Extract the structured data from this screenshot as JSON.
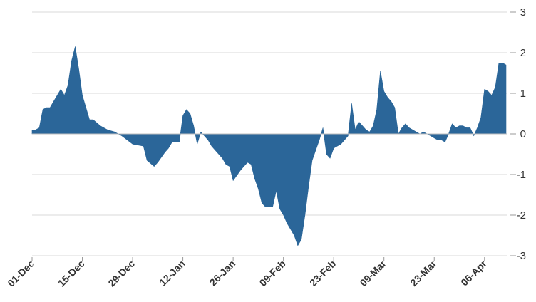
{
  "chart_data": {
    "type": "area",
    "title": "",
    "xlabel": "",
    "ylabel": "",
    "ylim": [
      -3,
      3
    ],
    "y_ticks": [
      3,
      2,
      1,
      0,
      -1,
      -2,
      -3
    ],
    "y_axis_side": "right",
    "grid": true,
    "legend": "none",
    "x_tick_labels": [
      "01-Dec",
      "15-Dec",
      "29-Dec",
      "12-Jan",
      "26-Jan",
      "09-Feb",
      "23-Feb",
      "09-Mar",
      "23-Mar",
      "06-Apr"
    ],
    "x_range": [
      "2024-12-01",
      "2025-04-12"
    ],
    "area_color": "#2b6699",
    "series": [
      {
        "x": [
          "2024-12-01",
          "2024-12-02",
          "2024-12-03",
          "2024-12-04",
          "2024-12-05",
          "2024-12-06",
          "2024-12-07",
          "2024-12-08",
          "2024-12-09",
          "2024-12-10",
          "2024-12-11",
          "2024-12-12",
          "2024-12-13",
          "2024-12-14",
          "2024-12-15",
          "2024-12-17",
          "2024-12-18",
          "2024-12-20",
          "2024-12-22",
          "2024-12-24",
          "2024-12-26",
          "2024-12-29",
          "2025-01-01",
          "2025-01-02",
          "2025-01-04",
          "2025-01-05",
          "2025-01-07",
          "2025-01-08",
          "2025-01-09",
          "2025-01-11",
          "2025-01-12",
          "2025-01-13",
          "2025-01-14",
          "2025-01-15",
          "2025-01-16",
          "2025-01-17",
          "2025-01-18",
          "2025-01-19",
          "2025-01-20",
          "2025-01-21",
          "2025-01-22",
          "2025-01-23",
          "2025-01-24",
          "2025-01-25",
          "2025-01-26",
          "2025-01-28",
          "2025-01-29",
          "2025-01-30",
          "2025-01-31",
          "2025-02-01",
          "2025-02-02",
          "2025-02-03",
          "2025-02-04",
          "2025-02-05",
          "2025-02-06",
          "2025-02-07",
          "2025-02-08",
          "2025-02-09",
          "2025-02-10",
          "2025-02-11",
          "2025-02-12",
          "2025-02-13",
          "2025-02-14",
          "2025-02-15",
          "2025-02-16",
          "2025-02-17",
          "2025-02-18",
          "2025-02-19",
          "2025-02-20",
          "2025-02-21",
          "2025-02-22",
          "2025-02-23",
          "2025-02-24",
          "2025-02-25",
          "2025-02-26",
          "2025-02-27",
          "2025-02-28",
          "2025-03-01",
          "2025-03-02",
          "2025-03-03",
          "2025-03-04",
          "2025-03-05",
          "2025-03-06",
          "2025-03-07",
          "2025-03-08",
          "2025-03-09",
          "2025-03-10",
          "2025-03-11",
          "2025-03-12",
          "2025-03-13",
          "2025-03-14",
          "2025-03-15",
          "2025-03-16",
          "2025-03-18",
          "2025-03-19",
          "2025-03-20",
          "2025-03-22",
          "2025-03-23",
          "2025-03-24",
          "2025-03-25",
          "2025-03-26",
          "2025-03-27",
          "2025-03-28",
          "2025-03-29",
          "2025-03-30",
          "2025-03-31",
          "2025-04-01",
          "2025-04-02",
          "2025-04-03",
          "2025-04-04",
          "2025-04-05",
          "2025-04-06",
          "2025-04-07",
          "2025-04-08",
          "2025-04-09",
          "2025-04-10",
          "2025-04-11",
          "2025-04-12"
        ],
        "y": [
          0.1,
          0.1,
          0.15,
          0.6,
          0.65,
          0.65,
          0.8,
          0.95,
          1.1,
          0.95,
          1.2,
          1.8,
          2.15,
          1.6,
          0.95,
          0.35,
          0.35,
          0.2,
          0.1,
          0.05,
          -0.05,
          -0.25,
          -0.3,
          -0.65,
          -0.8,
          -0.7,
          -0.45,
          -0.35,
          -0.2,
          -0.2,
          0.45,
          0.6,
          0.5,
          0.2,
          -0.25,
          0.05,
          -0.05,
          -0.15,
          -0.3,
          -0.4,
          -0.5,
          -0.6,
          -0.75,
          -0.8,
          -1.15,
          -0.9,
          -0.8,
          -0.7,
          -0.75,
          -1.1,
          -1.35,
          -1.7,
          -1.8,
          -1.8,
          -1.8,
          -1.4,
          -1.85,
          -2.0,
          -2.2,
          -2.35,
          -2.5,
          -2.75,
          -2.6,
          -2.0,
          -1.3,
          -0.65,
          -0.4,
          -0.15,
          0.15,
          -0.5,
          -0.6,
          -0.35,
          -0.3,
          -0.25,
          -0.15,
          -0.05,
          0.75,
          0.1,
          0.3,
          0.2,
          0.1,
          0.05,
          0.2,
          0.6,
          1.55,
          1.05,
          0.9,
          0.8,
          0.65,
          0.0,
          0.15,
          0.25,
          0.15,
          0.05,
          0.0,
          0.05,
          -0.05,
          -0.1,
          -0.15,
          -0.15,
          -0.2,
          0.0,
          0.25,
          0.15,
          0.2,
          0.2,
          0.15,
          0.15,
          -0.05,
          0.15,
          0.4,
          1.1,
          1.05,
          0.95,
          1.15,
          1.75,
          1.75,
          1.7
        ]
      }
    ]
  }
}
